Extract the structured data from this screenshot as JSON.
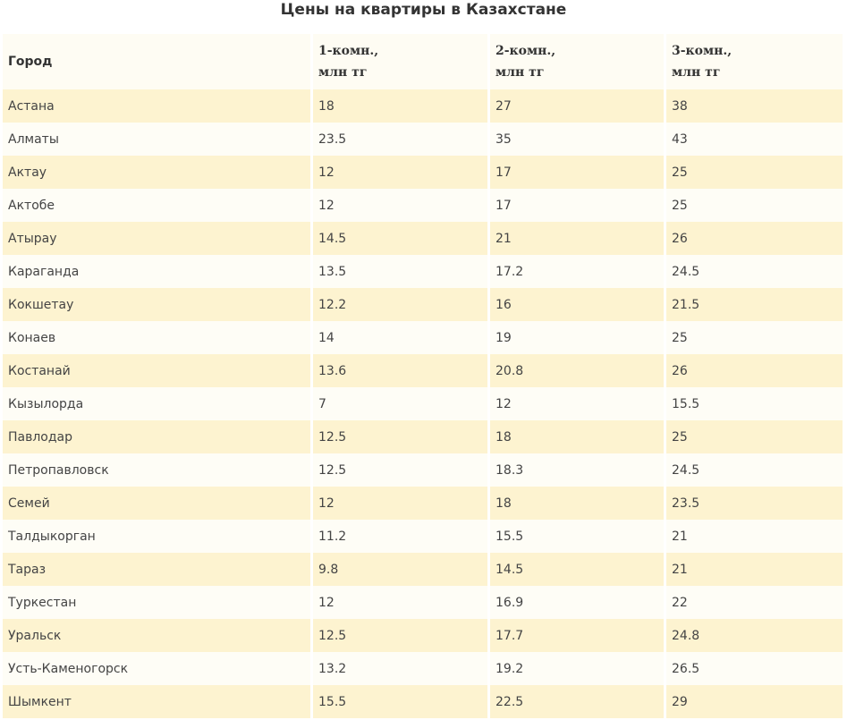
{
  "title": "Цены на квартиры в Казахстане",
  "colors": {
    "row_even": "#fdf3d0",
    "row_odd": "#fefdf6",
    "header_bg": "#fefcf3",
    "text": "#333333"
  },
  "table": {
    "headers": {
      "city": "Город",
      "room1": [
        "1-комн.,",
        "млн тг"
      ],
      "room2": [
        "2-комн.,",
        "млн тг"
      ],
      "room3": [
        "3-комн.,",
        "млн тг"
      ]
    },
    "rows": [
      [
        "Астана",
        "18",
        "27",
        "38"
      ],
      [
        "Алматы",
        "23.5",
        "35",
        "43"
      ],
      [
        "Актау",
        "12",
        "17",
        "25"
      ],
      [
        "Актобе",
        "12",
        "17",
        "25"
      ],
      [
        "Атырау",
        "14.5",
        "21",
        "26"
      ],
      [
        "Караганда",
        "13.5",
        "17.2",
        "24.5"
      ],
      [
        "Кокшетау",
        "12.2",
        "16",
        "21.5"
      ],
      [
        "Конаев",
        "14",
        "19",
        "25"
      ],
      [
        "Костанай",
        "13.6",
        "20.8",
        "26"
      ],
      [
        "Кызылорда",
        "7",
        "12",
        "15.5"
      ],
      [
        "Павлодар",
        "12.5",
        "18",
        "25"
      ],
      [
        "Петропавловск",
        "12.5",
        "18.3",
        "24.5"
      ],
      [
        "Семей",
        "12",
        "18",
        "23.5"
      ],
      [
        "Талдыкорган",
        "11.2",
        "15.5",
        "21"
      ],
      [
        "Тараз",
        "9.8",
        "14.5",
        "21"
      ],
      [
        "Туркестан",
        "12",
        "16.9",
        "22"
      ],
      [
        "Уральск",
        "12.5",
        "17.7",
        "24.8"
      ],
      [
        "Усть-Каменогорск",
        "13.2",
        "19.2",
        "26.5"
      ],
      [
        "Шымкент",
        "15.5",
        "22.5",
        "29"
      ]
    ]
  }
}
